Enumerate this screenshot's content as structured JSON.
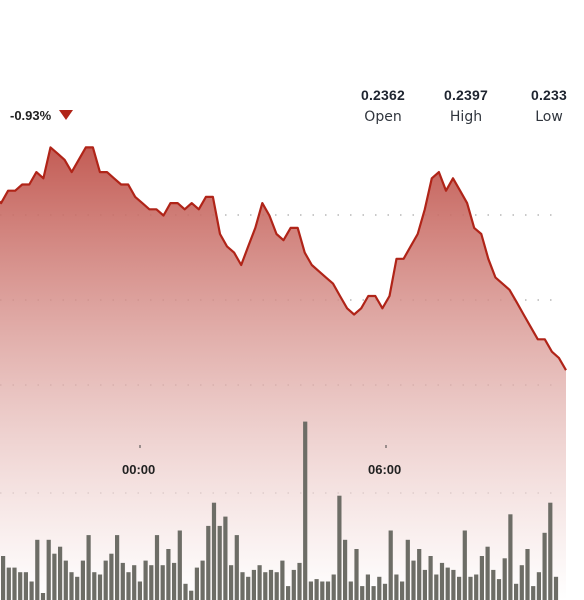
{
  "change": {
    "text": "-0.93%",
    "direction": "down"
  },
  "stats": [
    {
      "value": "0.2362",
      "label": "Open"
    },
    {
      "value": "0.2397",
      "label": "High"
    },
    {
      "value": "0.233",
      "label": "Low"
    }
  ],
  "colors": {
    "line": "#b02418",
    "area_top": "#c0544c",
    "area_bottom": "#ffffff",
    "volume_bar": "#6d6d66",
    "grid": "#9a9a9a"
  },
  "chart_data": {
    "type": "area",
    "x_tick_labels": [
      "00:00",
      "06:00"
    ],
    "price_series": [
      0.2352,
      0.2351,
      0.2353,
      0.2353,
      0.2354,
      0.2354,
      0.2356,
      0.2355,
      0.236,
      0.2359,
      0.2358,
      0.2356,
      0.2358,
      0.236,
      0.236,
      0.2356,
      0.2356,
      0.2355,
      0.2354,
      0.2354,
      0.2352,
      0.2351,
      0.235,
      0.235,
      0.2349,
      0.2351,
      0.2351,
      0.235,
      0.2351,
      0.235,
      0.2352,
      0.2352,
      0.2346,
      0.2344,
      0.2343,
      0.2341,
      0.2344,
      0.2347,
      0.2351,
      0.2349,
      0.2346,
      0.2345,
      0.2347,
      0.2347,
      0.2343,
      0.2341,
      0.234,
      0.2339,
      0.2338,
      0.2336,
      0.2334,
      0.2333,
      0.2334,
      0.2336,
      0.2336,
      0.2334,
      0.2336,
      0.2342,
      0.2342,
      0.2344,
      0.2346,
      0.235,
      0.2355,
      0.2356,
      0.2353,
      0.2355,
      0.2353,
      0.2351,
      0.2347,
      0.2346,
      0.2342,
      0.2339,
      0.2338,
      0.2337,
      0.2335,
      0.2333,
      0.2331,
      0.2329,
      0.2329,
      0.2327,
      0.2326,
      0.2324
    ],
    "price_ylim": [
      0.232,
      0.2362
    ],
    "volume_series": [
      19,
      14,
      14,
      12,
      12,
      8,
      26,
      3,
      26,
      20,
      23,
      17,
      12,
      10,
      17,
      28,
      12,
      11,
      17,
      20,
      28,
      16,
      12,
      15,
      8,
      17,
      15,
      28,
      15,
      22,
      16,
      30,
      7,
      4,
      14,
      17,
      32,
      42,
      32,
      36,
      15,
      28,
      12,
      10,
      13,
      15,
      12,
      13,
      12,
      17,
      6,
      13,
      16,
      77,
      8,
      9,
      8,
      8,
      11,
      45,
      26,
      8,
      22,
      6,
      11,
      6,
      10,
      7,
      30,
      11,
      8,
      26,
      17,
      22,
      13,
      19,
      11,
      16,
      14,
      13,
      10,
      30,
      10,
      11,
      19,
      23,
      13,
      9,
      18,
      37,
      7,
      15,
      22,
      6,
      12,
      29,
      42,
      10
    ],
    "volume_ylim": [
      0,
      82
    ],
    "grid": true
  }
}
